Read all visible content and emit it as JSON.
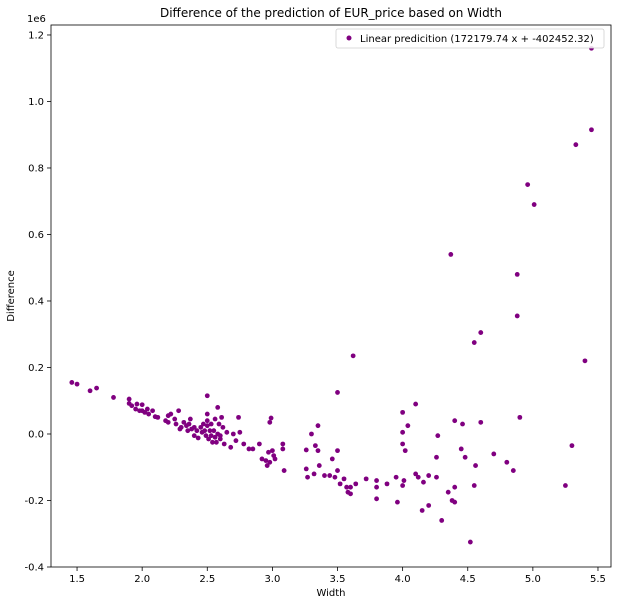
{
  "chart_data": {
    "type": "scatter",
    "title": "Difference of the prediction of EUR_price based on Width",
    "xlabel": "Width",
    "ylabel": "Difference",
    "y_offset_label": "1e6",
    "xlim": [
      1.3,
      5.6
    ],
    "ylim": [
      -0.4,
      1.23
    ],
    "x_ticks": [
      1.5,
      2.0,
      2.5,
      3.0,
      3.5,
      4.0,
      4.5,
      5.0,
      5.5
    ],
    "x_tick_labels": [
      "1.5",
      "2.0",
      "2.5",
      "3.0",
      "3.5",
      "4.0",
      "4.5",
      "5.0",
      "5.5"
    ],
    "y_ticks": [
      -0.4,
      -0.2,
      0.0,
      0.2,
      0.4,
      0.6,
      0.8,
      1.0,
      1.2
    ],
    "y_tick_labels": [
      "-0.4",
      "-0.2",
      "0.0",
      "0.2",
      "0.4",
      "0.6",
      "0.8",
      "1.0",
      "1.2"
    ],
    "grid": false,
    "legend_position": "top-right",
    "series": [
      {
        "name": "Linear predicition (172179.74 x + -402452.32)",
        "color": "#800080",
        "marker": "circle",
        "points": [
          [
            1.46,
            0.155
          ],
          [
            1.5,
            0.15
          ],
          [
            1.6,
            0.13
          ],
          [
            1.65,
            0.138
          ],
          [
            1.78,
            0.11
          ],
          [
            1.9,
            0.105
          ],
          [
            1.9,
            0.092
          ],
          [
            1.92,
            0.085
          ],
          [
            1.95,
            0.075
          ],
          [
            1.96,
            0.09
          ],
          [
            1.98,
            0.07
          ],
          [
            2.0,
            0.088
          ],
          [
            2.0,
            0.07
          ],
          [
            2.02,
            0.065
          ],
          [
            2.04,
            0.075
          ],
          [
            2.05,
            0.06
          ],
          [
            2.08,
            0.07
          ],
          [
            2.1,
            0.052
          ],
          [
            2.12,
            0.05
          ],
          [
            2.18,
            0.04
          ],
          [
            2.2,
            0.055
          ],
          [
            2.2,
            0.035
          ],
          [
            2.22,
            0.06
          ],
          [
            2.25,
            0.045
          ],
          [
            2.26,
            0.03
          ],
          [
            2.28,
            0.07
          ],
          [
            2.29,
            0.015
          ],
          [
            2.3,
            0.02
          ],
          [
            2.32,
            0.035
          ],
          [
            2.34,
            0.025
          ],
          [
            2.35,
            0.01
          ],
          [
            2.36,
            0.03
          ],
          [
            2.37,
            0.045
          ],
          [
            2.38,
            0.015
          ],
          [
            2.4,
            0.02
          ],
          [
            2.4,
            -0.005
          ],
          [
            2.42,
            0.01
          ],
          [
            2.43,
            -0.012
          ],
          [
            2.45,
            0.02
          ],
          [
            2.46,
            0.005
          ],
          [
            2.47,
            0.03
          ],
          [
            2.48,
            0.01
          ],
          [
            2.49,
            -0.005
          ],
          [
            2.5,
            0.115
          ],
          [
            2.5,
            0.06
          ],
          [
            2.5,
            0.04
          ],
          [
            2.5,
            0.025
          ],
          [
            2.51,
            -0.015
          ],
          [
            2.52,
            0.01
          ],
          [
            2.53,
            0.03
          ],
          [
            2.53,
            -0.005
          ],
          [
            2.54,
            -0.025
          ],
          [
            2.55,
            0.01
          ],
          [
            2.56,
            0.045
          ],
          [
            2.56,
            -0.01
          ],
          [
            2.57,
            -0.025
          ],
          [
            2.58,
            0.08
          ],
          [
            2.58,
            0.0
          ],
          [
            2.59,
            0.03
          ],
          [
            2.6,
            -0.005
          ],
          [
            2.6,
            -0.015
          ],
          [
            2.61,
            0.05
          ],
          [
            2.62,
            0.02
          ],
          [
            2.63,
            -0.03
          ],
          [
            2.65,
            0.005
          ],
          [
            2.68,
            -0.04
          ],
          [
            2.7,
            0.0
          ],
          [
            2.72,
            -0.02
          ],
          [
            2.74,
            0.05
          ],
          [
            2.75,
            0.005
          ],
          [
            2.78,
            -0.03
          ],
          [
            2.82,
            -0.045
          ],
          [
            2.85,
            -0.045
          ],
          [
            2.9,
            -0.03
          ],
          [
            2.92,
            -0.075
          ],
          [
            2.95,
            -0.08
          ],
          [
            2.96,
            -0.095
          ],
          [
            2.97,
            -0.055
          ],
          [
            2.98,
            0.035
          ],
          [
            2.98,
            -0.085
          ],
          [
            2.99,
            0.048
          ],
          [
            3.0,
            -0.05
          ],
          [
            3.01,
            -0.065
          ],
          [
            3.02,
            -0.075
          ],
          [
            3.08,
            -0.03
          ],
          [
            3.08,
            -0.045
          ],
          [
            3.09,
            -0.11
          ],
          [
            3.26,
            -0.048
          ],
          [
            3.26,
            -0.105
          ],
          [
            3.27,
            -0.13
          ],
          [
            3.3,
            0.0
          ],
          [
            3.32,
            -0.12
          ],
          [
            3.33,
            -0.035
          ],
          [
            3.35,
            0.025
          ],
          [
            3.35,
            -0.05
          ],
          [
            3.36,
            -0.095
          ],
          [
            3.4,
            -0.125
          ],
          [
            3.44,
            -0.125
          ],
          [
            3.46,
            -0.075
          ],
          [
            3.48,
            -0.13
          ],
          [
            3.5,
            0.125
          ],
          [
            3.5,
            -0.05
          ],
          [
            3.5,
            -0.11
          ],
          [
            3.52,
            -0.15
          ],
          [
            3.55,
            -0.135
          ],
          [
            3.57,
            -0.16
          ],
          [
            3.58,
            -0.175
          ],
          [
            3.6,
            -0.18
          ],
          [
            3.6,
            -0.16
          ],
          [
            3.62,
            0.235
          ],
          [
            3.64,
            -0.15
          ],
          [
            3.72,
            -0.135
          ],
          [
            3.8,
            -0.14
          ],
          [
            3.8,
            -0.16
          ],
          [
            3.8,
            -0.195
          ],
          [
            3.88,
            -0.15
          ],
          [
            3.95,
            -0.13
          ],
          [
            3.96,
            -0.205
          ],
          [
            4.0,
            0.065
          ],
          [
            4.0,
            0.005
          ],
          [
            4.0,
            -0.03
          ],
          [
            4.0,
            -0.155
          ],
          [
            4.01,
            -0.14
          ],
          [
            4.02,
            -0.05
          ],
          [
            4.04,
            0.025
          ],
          [
            4.1,
            0.09
          ],
          [
            4.1,
            -0.12
          ],
          [
            4.12,
            -0.13
          ],
          [
            4.15,
            -0.23
          ],
          [
            4.16,
            -0.145
          ],
          [
            4.2,
            -0.125
          ],
          [
            4.2,
            -0.215
          ],
          [
            4.26,
            -0.07
          ],
          [
            4.26,
            -0.13
          ],
          [
            4.27,
            -0.005
          ],
          [
            4.3,
            -0.26
          ],
          [
            4.35,
            -0.175
          ],
          [
            4.37,
            0.54
          ],
          [
            4.38,
            -0.2
          ],
          [
            4.4,
            0.04
          ],
          [
            4.4,
            -0.16
          ],
          [
            4.4,
            -0.205
          ],
          [
            4.45,
            -0.045
          ],
          [
            4.46,
            0.03
          ],
          [
            4.48,
            -0.07
          ],
          [
            4.52,
            -0.325
          ],
          [
            4.55,
            0.275
          ],
          [
            4.55,
            -0.155
          ],
          [
            4.56,
            -0.095
          ],
          [
            4.6,
            0.305
          ],
          [
            4.6,
            0.035
          ],
          [
            4.7,
            -0.06
          ],
          [
            4.8,
            -0.085
          ],
          [
            4.85,
            -0.11
          ],
          [
            4.88,
            0.48
          ],
          [
            4.88,
            0.355
          ],
          [
            4.9,
            0.05
          ],
          [
            4.96,
            0.75
          ],
          [
            5.01,
            0.69
          ],
          [
            5.25,
            -0.155
          ],
          [
            5.3,
            -0.035
          ],
          [
            5.33,
            0.87
          ],
          [
            5.4,
            0.22
          ],
          [
            5.45,
            1.16
          ],
          [
            5.45,
            0.915
          ]
        ]
      }
    ]
  }
}
